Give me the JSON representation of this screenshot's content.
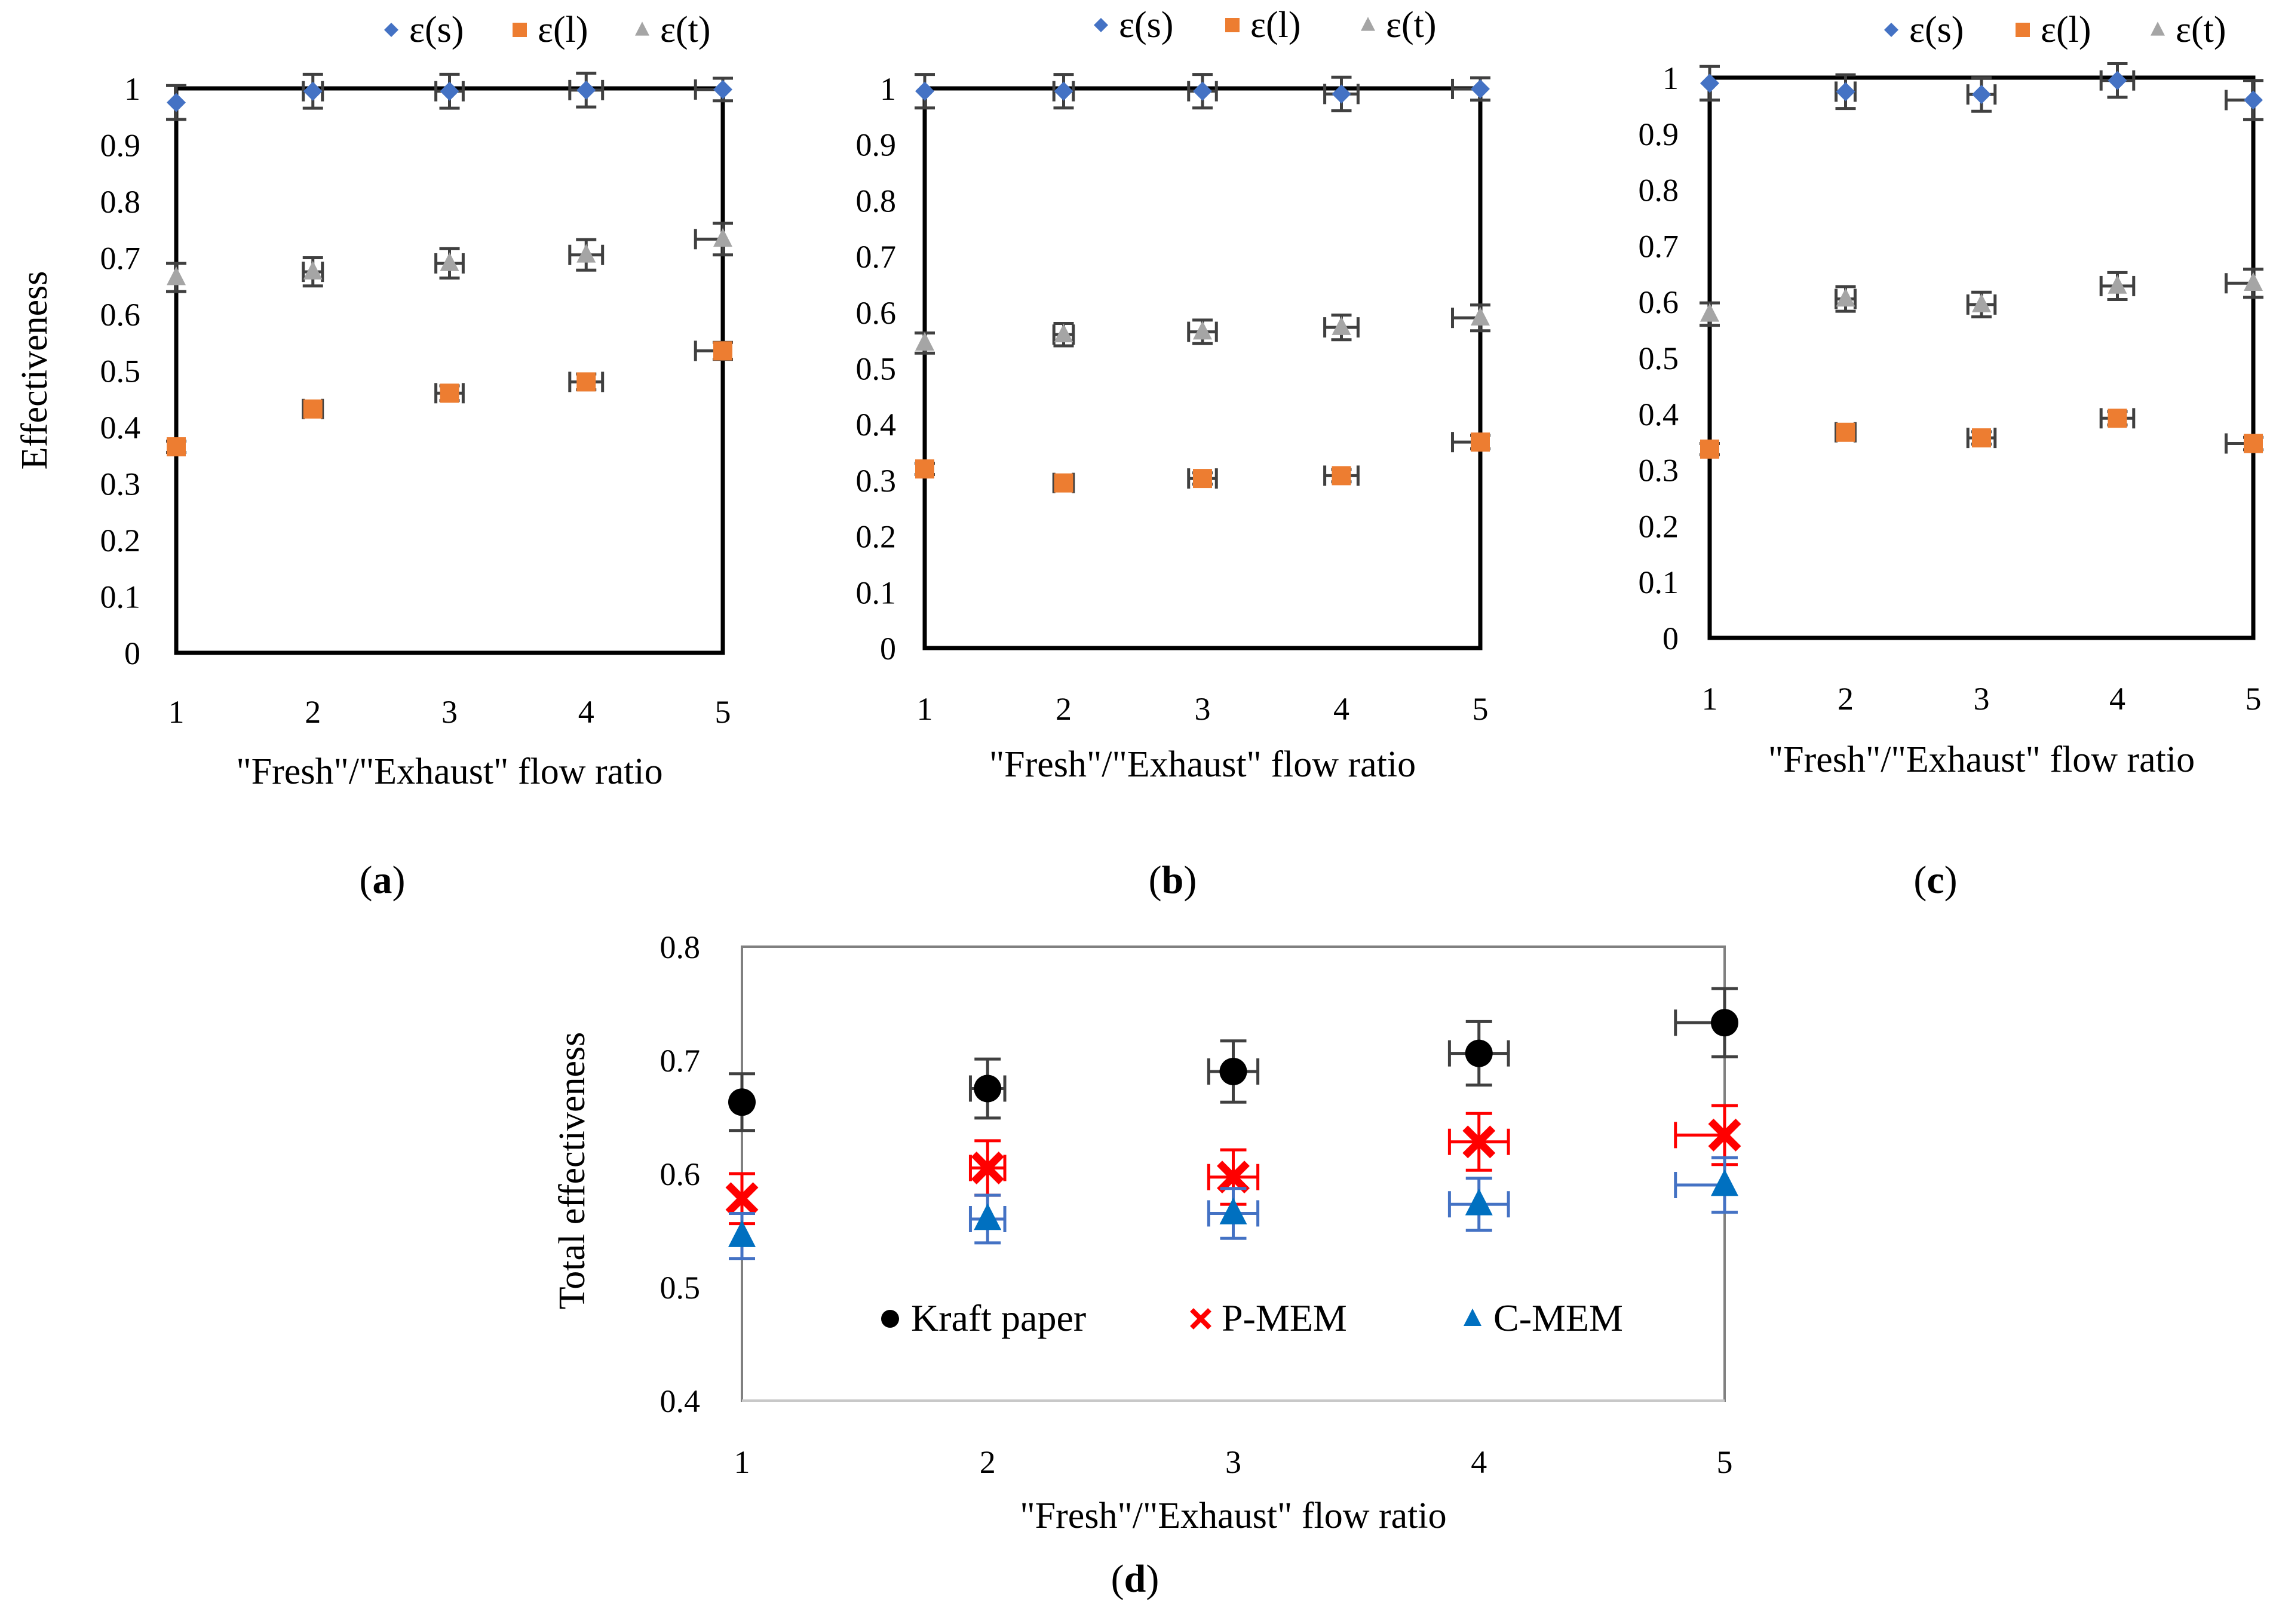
{
  "chart_data": [
    {
      "type": "scatter",
      "panel_label": "a",
      "ylabel": "Effectiveness",
      "xlabel": "\"Fresh\"/\"Exhaust\" flow ratio",
      "xlim": [
        1,
        5
      ],
      "ylim": [
        0,
        1
      ],
      "x_ticks": [
        "1",
        "2",
        "3",
        "4",
        "5"
      ],
      "y_ticks": [
        "0",
        "0.1",
        "0.2",
        "0.3",
        "0.4",
        "0.5",
        "0.6",
        "0.7",
        "0.8",
        "0.9",
        "1"
      ],
      "legend_position": "top",
      "series": [
        {
          "name": "ε(s)",
          "marker": "diamond",
          "color": "#4472C4",
          "x": [
            1,
            2,
            3,
            4,
            5
          ],
          "values": [
            0.975,
            0.995,
            0.995,
            0.997,
            0.998
          ],
          "yerr": [
            0.03,
            0.03,
            0.03,
            0.03,
            0.02
          ],
          "xerr": [
            0,
            0.07,
            0.1,
            0.12,
            0.2
          ]
        },
        {
          "name": "ε(l)",
          "marker": "square",
          "color": "#ED7D31",
          "x": [
            1,
            2,
            3,
            4,
            5
          ],
          "values": [
            0.365,
            0.432,
            0.46,
            0.48,
            0.535
          ],
          "yerr": [
            0.01,
            0.012,
            0.013,
            0.014,
            0.015
          ],
          "xerr": [
            0,
            0.07,
            0.1,
            0.12,
            0.2
          ]
        },
        {
          "name": "ε(t)",
          "marker": "triangle",
          "color": "#A5A5A5",
          "x": [
            1,
            2,
            3,
            4,
            5
          ],
          "values": [
            0.665,
            0.675,
            0.69,
            0.705,
            0.733
          ],
          "yerr": [
            0.025,
            0.025,
            0.026,
            0.027,
            0.028
          ],
          "xerr": [
            0,
            0.07,
            0.1,
            0.12,
            0.2
          ]
        }
      ]
    },
    {
      "type": "scatter",
      "panel_label": "b",
      "ylabel": "",
      "xlabel": "\"Fresh\"/\"Exhaust\" flow ratio",
      "xlim": [
        1,
        5
      ],
      "ylim": [
        0,
        1
      ],
      "x_ticks": [
        "1",
        "2",
        "3",
        "4",
        "5"
      ],
      "y_ticks": [
        "0",
        "0.1",
        "0.2",
        "0.3",
        "0.4",
        "0.5",
        "0.6",
        "0.7",
        "0.8",
        "0.9",
        "1"
      ],
      "legend_position": "top",
      "series": [
        {
          "name": "ε(s)",
          "marker": "diamond",
          "color": "#4472C4",
          "x": [
            1,
            2,
            3,
            4,
            5
          ],
          "values": [
            0.995,
            0.995,
            0.995,
            0.99,
            0.999
          ],
          "yerr": [
            0.03,
            0.03,
            0.03,
            0.03,
            0.02
          ],
          "xerr": [
            0,
            0.07,
            0.1,
            0.12,
            0.2
          ]
        },
        {
          "name": "ε(l)",
          "marker": "square",
          "color": "#ED7D31",
          "x": [
            1,
            2,
            3,
            4,
            5
          ],
          "values": [
            0.32,
            0.295,
            0.303,
            0.308,
            0.368
          ],
          "yerr": [
            0.01,
            0.01,
            0.01,
            0.011,
            0.012
          ],
          "xerr": [
            0,
            0.07,
            0.1,
            0.12,
            0.2
          ]
        },
        {
          "name": "ε(t)",
          "marker": "triangle",
          "color": "#A5A5A5",
          "x": [
            1,
            2,
            3,
            4,
            5
          ],
          "values": [
            0.545,
            0.56,
            0.565,
            0.573,
            0.59
          ],
          "yerr": [
            0.018,
            0.02,
            0.021,
            0.022,
            0.023
          ],
          "xerr": [
            0,
            0.07,
            0.1,
            0.12,
            0.2
          ]
        }
      ]
    },
    {
      "type": "scatter",
      "panel_label": "c",
      "ylabel": "",
      "xlabel": "\"Fresh\"/\"Exhaust\" flow ratio",
      "xlim": [
        1,
        5
      ],
      "ylim": [
        0,
        1
      ],
      "x_ticks": [
        "1",
        "2",
        "3",
        "4",
        "5"
      ],
      "y_ticks": [
        "0",
        "0.1",
        "0.2",
        "0.3",
        "0.4",
        "0.5",
        "0.6",
        "0.7",
        "0.8",
        "0.9",
        "1"
      ],
      "legend_position": "top",
      "series": [
        {
          "name": "ε(s)",
          "marker": "diamond",
          "color": "#4472C4",
          "x": [
            1,
            2,
            3,
            4,
            5
          ],
          "values": [
            0.99,
            0.975,
            0.97,
            0.995,
            0.96
          ],
          "yerr": [
            0.03,
            0.03,
            0.03,
            0.03,
            0.035
          ],
          "xerr": [
            0,
            0.07,
            0.1,
            0.12,
            0.2
          ]
        },
        {
          "name": "ε(l)",
          "marker": "square",
          "color": "#ED7D31",
          "x": [
            1,
            2,
            3,
            4,
            5
          ],
          "values": [
            0.337,
            0.367,
            0.357,
            0.392,
            0.347
          ],
          "yerr": [
            0.01,
            0.012,
            0.011,
            0.012,
            0.011
          ],
          "xerr": [
            0,
            0.07,
            0.1,
            0.12,
            0.2
          ]
        },
        {
          "name": "ε(t)",
          "marker": "triangle",
          "color": "#A5A5A5",
          "x": [
            1,
            2,
            3,
            4,
            5
          ],
          "values": [
            0.578,
            0.605,
            0.595,
            0.628,
            0.633
          ],
          "yerr": [
            0.02,
            0.022,
            0.022,
            0.024,
            0.025
          ],
          "xerr": [
            0,
            0.07,
            0.1,
            0.12,
            0.2
          ]
        }
      ]
    },
    {
      "type": "scatter",
      "panel_label": "d",
      "ylabel": "Total effectiveness",
      "xlabel": "\"Fresh\"/\"Exhaust\" flow ratio",
      "xlim": [
        1,
        5
      ],
      "ylim": [
        0.4,
        0.8
      ],
      "x_ticks": [
        "1",
        "2",
        "3",
        "4",
        "5"
      ],
      "y_ticks": [
        "0.4",
        "0.5",
        "0.6",
        "0.7",
        "0.8"
      ],
      "legend_position": "bottom-inside",
      "series": [
        {
          "name": "Kraft paper",
          "marker": "circle",
          "color": "#000000",
          "errcolor": "#404040",
          "x": [
            1,
            2,
            3,
            4,
            5
          ],
          "values": [
            0.663,
            0.675,
            0.69,
            0.706,
            0.733
          ],
          "yerr": [
            0.025,
            0.026,
            0.027,
            0.028,
            0.03
          ],
          "xerr": [
            0,
            0.07,
            0.1,
            0.12,
            0.2
          ]
        },
        {
          "name": "P-MEM",
          "marker": "cross",
          "color": "#FF0000",
          "errcolor": "#FF0000",
          "x": [
            1,
            2,
            3,
            4,
            5
          ],
          "values": [
            0.578,
            0.605,
            0.597,
            0.628,
            0.634
          ],
          "yerr": [
            0.022,
            0.024,
            0.024,
            0.025,
            0.026
          ],
          "xerr": [
            0,
            0.07,
            0.1,
            0.12,
            0.2
          ]
        },
        {
          "name": "C-MEM",
          "marker": "triangle",
          "color": "#0070C0",
          "errcolor": "#4472C4",
          "x": [
            1,
            2,
            3,
            4,
            5
          ],
          "values": [
            0.545,
            0.56,
            0.565,
            0.573,
            0.59
          ],
          "yerr": [
            0.02,
            0.021,
            0.022,
            0.023,
            0.024
          ],
          "xerr": [
            0,
            0.07,
            0.1,
            0.12,
            0.2
          ]
        }
      ]
    }
  ]
}
